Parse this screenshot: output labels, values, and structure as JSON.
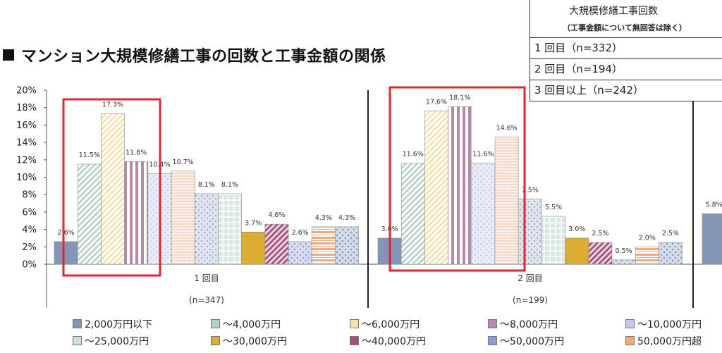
{
  "title": "マンション大規模修繕工事の回数と工事金額の関係",
  "table": {
    "header": "大規模修繕工事回数",
    "subheader": "（工事金額について無回答は除く）",
    "rows": [
      "1 回目（n=332）",
      "2 回目（n=194）",
      "3 回目以上（n=242）"
    ]
  },
  "chart_data": {
    "type": "bar",
    "ylim": [
      0,
      20
    ],
    "yticks": [
      "0%",
      "2%",
      "4%",
      "6%",
      "8%",
      "10%",
      "12%",
      "14%",
      "16%",
      "18%",
      "20%"
    ],
    "groups": [
      {
        "name": "1 回目",
        "n": "(n=347)",
        "values": [
          2.6,
          11.5,
          17.3,
          11.8,
          10.4,
          10.7,
          8.1,
          8.1,
          3.7,
          4.6,
          2.6,
          4.3,
          4.3
        ],
        "labels": [
          "2.6%",
          "11.5%",
          "17.3%",
          "11.8%",
          "10.4%",
          "10.7%",
          "8.1%",
          "8.1%",
          "3.7%",
          "4.6%",
          "2.6%",
          "4.3%",
          "4.3%"
        ]
      },
      {
        "name": "2 回目",
        "n": "(n=199)",
        "values": [
          3.0,
          11.6,
          17.6,
          18.1,
          11.6,
          14.6,
          7.5,
          5.5,
          3.0,
          2.5,
          0.5,
          2.0,
          2.5
        ],
        "labels": [
          "3.0%",
          "11.6%",
          "17.6%",
          "18.1%",
          "11.6%",
          "14.6%",
          "7.5%",
          "5.5%",
          "3.0%",
          "2.5%",
          "0.5%",
          "2.0%",
          "2.5%"
        ]
      },
      {
        "name": "",
        "n": "",
        "values": [
          5.8
        ],
        "labels": [
          "5.8%"
        ]
      }
    ],
    "series": [
      {
        "name": "2,000万円以下",
        "color": "#8496b8",
        "pattern": "solid"
      },
      {
        "name": "～4,000万円",
        "color": "#b8d1c7",
        "pattern": "diag"
      },
      {
        "name": "～6,000万円",
        "color": "#f3e2ab",
        "pattern": "diag"
      },
      {
        "name": "～8,000万円",
        "color": "#b68aa6",
        "pattern": "vlines"
      },
      {
        "name": "～10,000万円",
        "color": "#c3c9ee",
        "pattern": "dots"
      },
      {
        "name": "～25,000万円",
        "color": "#f3c9b3",
        "pattern": "zigzag"
      },
      {
        "name": "～25,000万円",
        "color": "#a3b2cf",
        "pattern": "dots"
      },
      {
        "name": "～25,000万円",
        "color": "#a8cdbf",
        "pattern": "grid"
      },
      {
        "name": "～30,000万円",
        "color": "#dcad35",
        "pattern": "solid"
      },
      {
        "name": "～40,000万円",
        "color": "#a44e7a",
        "pattern": "diag"
      },
      {
        "name": "～50,000万円",
        "color": "#8e9ad6",
        "pattern": "dots"
      },
      {
        "name": "50,000万円超",
        "color": "#f2a878",
        "pattern": "hlines"
      },
      {
        "name": "",
        "color": "#8496b8",
        "pattern": "dots"
      }
    ],
    "legend": [
      {
        "label": "2,000万円以下",
        "color": "#8496b8"
      },
      {
        "label": "～4,000万円",
        "color": "#b8d1c7"
      },
      {
        "label": "～6,000万円",
        "color": "#f3e2ab"
      },
      {
        "label": "～8,000万円",
        "color": "#b68aa6"
      },
      {
        "label": "～10,000万円",
        "color": "#c3c9ee"
      },
      {
        "label": "～25,000万円",
        "color": "#cfe0d8"
      },
      {
        "label": "～30,000万円",
        "color": "#dcad35"
      },
      {
        "label": "～40,000万円",
        "color": "#a44e7a"
      },
      {
        "label": "～50,000万円",
        "color": "#8e9ad6"
      },
      {
        "label": "50,000万円超",
        "color": "#f2a878"
      }
    ],
    "highlight_color": "#e3262d",
    "grid": false,
    "legend_position": "bottom"
  }
}
